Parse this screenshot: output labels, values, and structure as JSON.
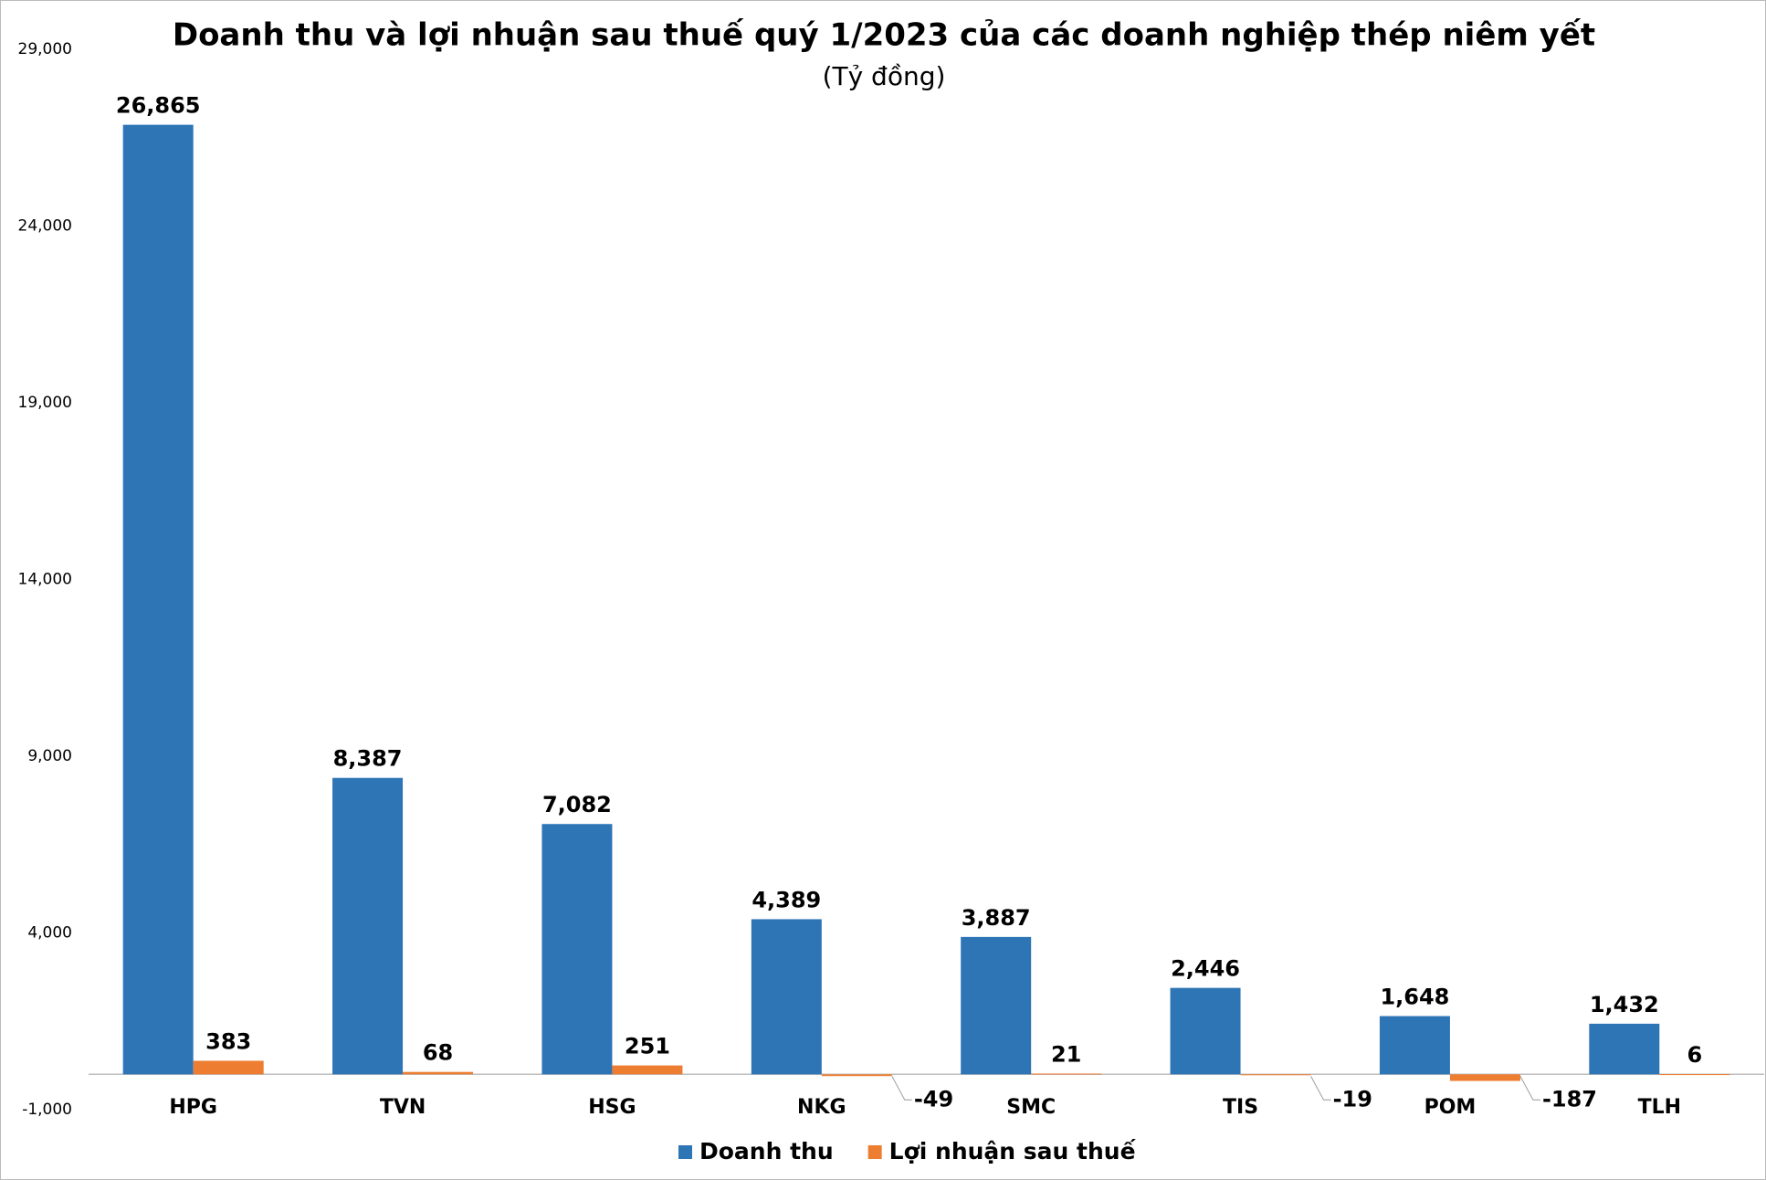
{
  "chart_data": {
    "type": "bar",
    "title": "Doanh thu và lợi nhuận sau thuế quý 1/2023 của các doanh nghiệp thép niêm yết",
    "subtitle": "(Tỷ đồng)",
    "categories": [
      "HPG",
      "TVN",
      "HSG",
      "NKG",
      "SMC",
      "TIS",
      "POM",
      "TLH"
    ],
    "series": [
      {
        "name": "Doanh thu",
        "color": "#2e75b6",
        "values": [
          26865,
          8387,
          7082,
          4389,
          3887,
          2446,
          1648,
          1432
        ],
        "value_labels": [
          "26,865",
          "8,387",
          "7,082",
          "4,389",
          "3,887",
          "2,446",
          "1,648",
          "1,432"
        ]
      },
      {
        "name": "Lợi nhuận sau thuế",
        "color": "#ed7d31",
        "values": [
          383,
          68,
          251,
          -49,
          21,
          -19,
          -187,
          6
        ]
      }
    ],
    "ylim": [
      -1000,
      29000
    ],
    "yticks": [
      {
        "value": -1000,
        "label": "-1,000"
      },
      {
        "value": 4000,
        "label": "4,000"
      },
      {
        "value": 9000,
        "label": "9,000"
      },
      {
        "value": 14000,
        "label": "14,000"
      },
      {
        "value": 19000,
        "label": "19,000"
      },
      {
        "value": 24000,
        "label": "24,000"
      },
      {
        "value": 29000,
        "label": "29,000"
      }
    ],
    "grid": false,
    "legend": "bottom"
  }
}
